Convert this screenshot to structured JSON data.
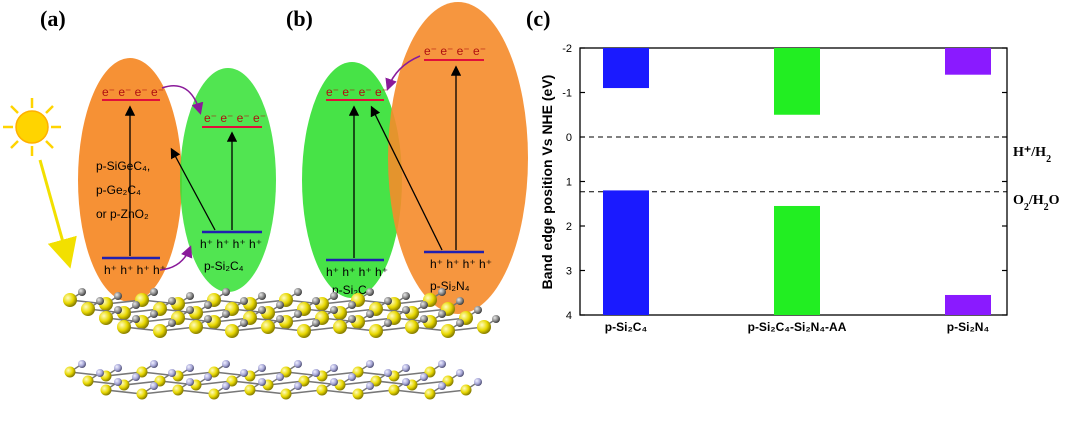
{
  "panels": {
    "a": {
      "tag": "(a)",
      "left_electrons": "e⁻ e⁻ e⁻ e⁻",
      "left_holes": "h⁺ h⁺ h⁺ h⁺",
      "left_materials": [
        "p-SiGeC₄,",
        "p-Ge₂C₄",
        "or p-ZnO₂"
      ],
      "right_electrons": "e⁻ e⁻ e⁻ e⁻",
      "right_holes": "h⁺ h⁺ h⁺ h⁺",
      "right_material": "p-Si₂C₄"
    },
    "b": {
      "tag": "(b)",
      "left_electrons": "e⁻ e⁻ e⁻ e⁻",
      "left_holes": "h⁺ h⁺ h⁺ h⁺",
      "left_material": "p-Si₂C₄",
      "right_electrons": "e⁻ e⁻ e⁻ e⁻",
      "right_holes": "h⁺ h⁺ h⁺ h⁺",
      "right_material": "p-Si₂N₄"
    },
    "c": {
      "tag": "(c)"
    }
  },
  "colors": {
    "orange": "#f58b2a",
    "green": "#33e033",
    "blue_bar": "#1a1aff",
    "green_bar": "#22ee22",
    "purple_bar": "#8a1aff",
    "band_red": "#e0103a",
    "band_blue": "#2020b0",
    "sun": "#ffd400"
  },
  "chart_data": {
    "type": "bar",
    "ylabel": "Band edge position Vs NHE (eV)",
    "ylim": [
      -2,
      4
    ],
    "y_inverted": true,
    "yticks": [
      -2,
      -1,
      0,
      1,
      2,
      3,
      4
    ],
    "ytick_labels": [
      "-2",
      "-1",
      "0",
      "1",
      "2",
      "3",
      "4"
    ],
    "categories": [
      "p-Si₂C₄",
      "p-Si₂C₄-Si₂N₄-AA",
      "p-Si₂N₄"
    ],
    "conduction_band": [
      -1.1,
      -0.5,
      -1.4
    ],
    "valence_band": [
      1.2,
      1.55,
      3.55
    ],
    "bar_colors": [
      "#1a1aff",
      "#22ee22",
      "#8a1aff"
    ],
    "reference_lines": [
      {
        "label_main": "H⁺/H",
        "label_sub": "2",
        "value": 0
      },
      {
        "label_main": "O",
        "label_sub": "2",
        "label_rest": "/H",
        "label_sub2": "2",
        "label_tail": "O",
        "value": 1.23
      }
    ]
  }
}
